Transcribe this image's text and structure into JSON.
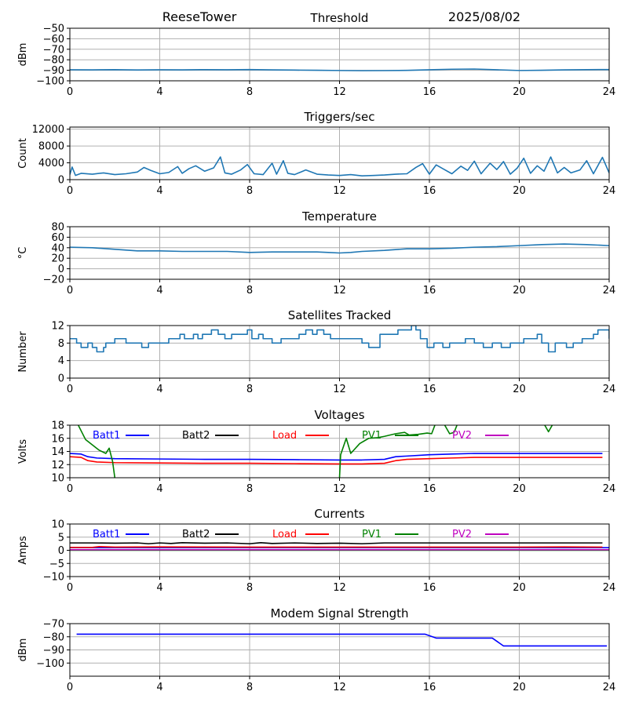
{
  "header": {
    "station": "ReeseTower",
    "panel_title": "Threshold",
    "date": "2025/08/02"
  },
  "colors": {
    "default_line": "#1f77b4",
    "batt1": "#0000ff",
    "batt2": "#000000",
    "load": "#ff0000",
    "pv1": "#008000",
    "pv2": "#bf00bf",
    "grid": "#b0b0b0"
  },
  "chart_data": [
    {
      "type": "line",
      "id": "threshold",
      "title": "Threshold",
      "xlabel": "",
      "ylabel": "dBm",
      "xlim": [
        0,
        24
      ],
      "ylim": [
        -100,
        -50
      ],
      "xticks": [
        0,
        4,
        8,
        12,
        16,
        20,
        24
      ],
      "yticks": [
        -100,
        -90,
        -80,
        -70,
        -60,
        -50
      ],
      "grid": true,
      "series": [
        {
          "color": "#1f77b4",
          "x": [
            0,
            1,
            2,
            3,
            4,
            5,
            6,
            7,
            8,
            9,
            10,
            11,
            12,
            13,
            14,
            15,
            16,
            17,
            18,
            19,
            20,
            21,
            22,
            23,
            24
          ],
          "y": [
            -89.5,
            -89.6,
            -89.4,
            -89.7,
            -89.5,
            -89.6,
            -89.4,
            -89.5,
            -89.3,
            -89.6,
            -89.8,
            -90.0,
            -90.2,
            -90.4,
            -90.3,
            -90.1,
            -89.5,
            -89.0,
            -88.8,
            -89.5,
            -90.2,
            -90.0,
            -89.6,
            -89.4,
            -89.3
          ]
        }
      ]
    },
    {
      "type": "line",
      "id": "triggers",
      "title": "Triggers/sec",
      "xlabel": "",
      "ylabel": "Count",
      "xlim": [
        0,
        24
      ],
      "ylim": [
        0,
        12500
      ],
      "xticks": [
        0,
        4,
        8,
        12,
        16,
        20,
        24
      ],
      "yticks": [
        0,
        4000,
        8000,
        12000
      ],
      "grid": true,
      "series": [
        {
          "color": "#1f77b4",
          "x": [
            0,
            0.1,
            0.25,
            0.5,
            1,
            1.5,
            2,
            2.5,
            3,
            3.3,
            3.6,
            4,
            4.4,
            4.8,
            5,
            5.3,
            5.6,
            6,
            6.4,
            6.7,
            6.9,
            7.2,
            7.6,
            7.9,
            8.2,
            8.6,
            9.0,
            9.2,
            9.5,
            9.7,
            10.0,
            10.5,
            11,
            11.5,
            12,
            12.5,
            13,
            13.5,
            14,
            14.5,
            15,
            15.4,
            15.7,
            16,
            16.3,
            16.6,
            17,
            17.4,
            17.7,
            18,
            18.3,
            18.7,
            19,
            19.3,
            19.6,
            19.9,
            20.2,
            20.5,
            20.8,
            21.1,
            21.4,
            21.7,
            22,
            22.3,
            22.7,
            23,
            23.3,
            23.7,
            24
          ],
          "y": [
            1200,
            3000,
            1000,
            1500,
            1300,
            1600,
            1200,
            1400,
            1800,
            2900,
            2200,
            1400,
            1700,
            3100,
            1500,
            2600,
            3300,
            2000,
            2800,
            5400,
            1600,
            1300,
            2300,
            3600,
            1400,
            1200,
            3900,
            1300,
            4500,
            1500,
            1200,
            2300,
            1300,
            1100,
            1000,
            1200,
            900,
            1000,
            1100,
            1300,
            1400,
            2900,
            3800,
            1300,
            3500,
            2600,
            1400,
            3200,
            2200,
            4400,
            1400,
            3900,
            2400,
            4300,
            1300,
            2700,
            5100,
            1500,
            3300,
            2000,
            5400,
            1600,
            2900,
            1600,
            2300,
            4500,
            1400,
            5300,
            1600
          ]
        }
      ]
    },
    {
      "type": "line",
      "id": "temperature",
      "title": "Temperature",
      "xlabel": "",
      "ylabel": "°C",
      "xlim": [
        0,
        24
      ],
      "ylim": [
        -20,
        80
      ],
      "xticks": [
        0,
        4,
        8,
        12,
        16,
        20,
        24
      ],
      "yticks": [
        -20,
        0,
        20,
        40,
        60,
        80
      ],
      "grid": true,
      "series": [
        {
          "color": "#1f77b4",
          "x": [
            0,
            1,
            2,
            3,
            4,
            5,
            6,
            7,
            8,
            9,
            10,
            11,
            11.5,
            12,
            12.5,
            13,
            14,
            15,
            16,
            17,
            18,
            19,
            20,
            21,
            22,
            23,
            24
          ],
          "y": [
            41,
            40,
            37,
            34,
            34,
            33,
            33,
            33,
            31,
            32,
            32,
            32,
            31,
            30,
            31,
            33,
            35,
            38,
            38,
            39,
            41,
            42,
            44,
            46,
            47,
            46,
            44
          ]
        }
      ]
    },
    {
      "type": "line",
      "id": "satellites",
      "title": "Satellites Tracked",
      "xlabel": "",
      "ylabel": "Number",
      "xlim": [
        0,
        24
      ],
      "ylim": [
        0,
        12
      ],
      "xticks": [
        0,
        4,
        8,
        12,
        16,
        20,
        24
      ],
      "yticks": [
        0,
        4,
        8,
        12
      ],
      "grid": true,
      "series": [
        {
          "color": "#1f77b4",
          "step": true,
          "x": [
            0,
            0.3,
            0.5,
            0.8,
            1.0,
            1.2,
            1.5,
            1.6,
            1.8,
            2.0,
            2.2,
            2.5,
            2.9,
            3.2,
            3.5,
            3.9,
            4.4,
            4.7,
            4.9,
            5.1,
            5.5,
            5.7,
            5.9,
            6.3,
            6.6,
            6.9,
            7.2,
            7.6,
            7.9,
            8.1,
            8.4,
            8.6,
            8.8,
            9.0,
            9.4,
            9.8,
            10.2,
            10.5,
            10.8,
            11.0,
            11.3,
            11.6,
            12.0,
            12.5,
            13.0,
            13.3,
            13.8,
            14.2,
            14.6,
            15.0,
            15.2,
            15.4,
            15.6,
            15.9,
            16.2,
            16.6,
            16.9,
            17.3,
            17.6,
            18.0,
            18.4,
            18.8,
            19.2,
            19.6,
            19.9,
            20.2,
            20.6,
            20.8,
            21.0,
            21.3,
            21.6,
            21.9,
            22.1,
            22.4,
            22.8,
            23.1,
            23.3,
            23.5,
            24
          ],
          "y": [
            9,
            8,
            7,
            8,
            7,
            6,
            7,
            8,
            8,
            9,
            9,
            8,
            8,
            7,
            8,
            8,
            9,
            9,
            10,
            9,
            10,
            9,
            10,
            11,
            10,
            9,
            10,
            10,
            11,
            9,
            10,
            9,
            9,
            8,
            9,
            9,
            10,
            11,
            10,
            11,
            10,
            9,
            9,
            9,
            8,
            7,
            10,
            10,
            11,
            11,
            12,
            11,
            9,
            7,
            8,
            7,
            8,
            8,
            9,
            8,
            7,
            8,
            7,
            8,
            8,
            9,
            9,
            10,
            8,
            6,
            8,
            8,
            7,
            8,
            9,
            9,
            10,
            11,
            9
          ]
        }
      ]
    },
    {
      "type": "line",
      "id": "voltages",
      "title": "Voltages",
      "xlabel": "",
      "ylabel": "Volts",
      "xlim": [
        0,
        24
      ],
      "ylim": [
        10,
        18
      ],
      "xticks": [
        0,
        4,
        8,
        12,
        16,
        20,
        24
      ],
      "yticks": [
        10,
        12,
        14,
        16,
        18
      ],
      "grid": true,
      "legend": "top, in-plot row",
      "series": [
        {
          "name": "Batt1",
          "color": "#0000ff",
          "x": [
            0,
            0.5,
            0.8,
            1.2,
            2,
            4,
            6,
            8,
            10,
            12,
            13,
            14,
            14.5,
            15,
            16,
            17,
            18,
            20,
            22,
            23.7
          ],
          "y": [
            13.7,
            13.6,
            13.2,
            13.0,
            12.9,
            12.85,
            12.8,
            12.8,
            12.75,
            12.7,
            12.7,
            12.8,
            13.2,
            13.3,
            13.5,
            13.6,
            13.7,
            13.7,
            13.7,
            13.7
          ]
        },
        {
          "name": "Batt2",
          "color": "#000000",
          "x": [],
          "y": []
        },
        {
          "name": "Load",
          "color": "#ff0000",
          "x": [
            0,
            0.5,
            0.8,
            1.2,
            2,
            4,
            6,
            8,
            10,
            12,
            13,
            14,
            14.5,
            15,
            16,
            17,
            18,
            20,
            22,
            23.7
          ],
          "y": [
            13.2,
            13.1,
            12.6,
            12.4,
            12.3,
            12.25,
            12.2,
            12.2,
            12.15,
            12.1,
            12.1,
            12.2,
            12.6,
            12.8,
            12.9,
            13.0,
            13.1,
            13.1,
            13.1,
            13.1
          ]
        },
        {
          "name": "PV1",
          "color": "#008000",
          "segments": [
            {
              "x": [
                0.3,
                0.7,
                1.0,
                1.3,
                1.6,
                1.75,
                1.9,
                2.0
              ],
              "y": [
                18.5,
                15.8,
                15.0,
                14.2,
                13.7,
                14.5,
                12.5,
                10.0
              ]
            },
            {
              "x": [
                12.0,
                12.05,
                12.3,
                12.5,
                12.9,
                13.3,
                13.7,
                14.0,
                14.5,
                14.9,
                15.1,
                15.5,
                15.9,
                16.1,
                16.3,
                16.6,
                16.9,
                17.1
              ],
              "y": [
                10.0,
                13.5,
                16.0,
                13.7,
                15.2,
                16.0,
                16.1,
                16.3,
                16.7,
                16.9,
                16.5,
                16.6,
                16.8,
                16.7,
                18.5,
                18.5,
                16.7,
                16.9
              ]
            },
            {
              "x": [
                17.1,
                17.25
              ],
              "y": [
                16.9,
                18.2
              ]
            },
            {
              "x": [
                21.1,
                21.3,
                21.5
              ],
              "y": [
                18.2,
                17.0,
                18.2
              ]
            }
          ]
        },
        {
          "name": "PV2",
          "color": "#bf00bf",
          "x": [],
          "y": []
        }
      ]
    },
    {
      "type": "line",
      "id": "currents",
      "title": "Currents",
      "xlabel": "",
      "ylabel": "Amps",
      "xlim": [
        0,
        24
      ],
      "ylim": [
        -10,
        10
      ],
      "xticks": [
        0,
        4,
        8,
        12,
        16,
        20,
        24
      ],
      "yticks": [
        -10,
        -5,
        0,
        5,
        10
      ],
      "grid": true,
      "legend": "top, in-plot row",
      "series": [
        {
          "name": "Batt1",
          "color": "#0000ff",
          "x": [
            0,
            24
          ],
          "y": [
            1.0,
            1.0
          ]
        },
        {
          "name": "Batt2",
          "color": "#000000",
          "x": [
            0,
            1,
            2,
            3,
            3.5,
            4,
            4.5,
            5,
            6,
            7,
            8,
            8.5,
            9,
            10,
            11,
            12,
            13,
            14,
            16,
            18,
            20,
            22,
            23.7
          ],
          "y": [
            2.8,
            2.8,
            2.7,
            2.8,
            2.5,
            2.8,
            2.6,
            2.9,
            2.7,
            2.8,
            2.5,
            2.9,
            2.6,
            2.8,
            2.6,
            2.7,
            2.5,
            2.8,
            2.8,
            2.8,
            2.8,
            2.8,
            2.8
          ]
        },
        {
          "name": "Load",
          "color": "#ff0000",
          "x": [
            0,
            1,
            1.3,
            2,
            4,
            8,
            12,
            16,
            20,
            22,
            23.7
          ],
          "y": [
            1.1,
            1.1,
            1.4,
            1.2,
            1.3,
            1.2,
            1.2,
            1.2,
            1.2,
            1.3,
            1.2
          ]
        },
        {
          "name": "PV1",
          "color": "#008000",
          "x": [
            0,
            24
          ],
          "y": [
            0.0,
            0.0
          ]
        },
        {
          "name": "PV2",
          "color": "#bf00bf",
          "x": [
            0,
            24
          ],
          "y": [
            0.2,
            0.2
          ]
        }
      ]
    },
    {
      "type": "line",
      "id": "modem",
      "title": "Modem Signal Strength",
      "xlabel": "",
      "ylabel": "dBm",
      "xlim": [
        0,
        24
      ],
      "ylim": [
        -110,
        -70
      ],
      "xticks": [
        0,
        4,
        8,
        12,
        16,
        20,
        24
      ],
      "yticks": [
        -100,
        -90,
        -80,
        -70
      ],
      "grid": true,
      "series": [
        {
          "color": "#0000ff",
          "x": [
            0.3,
            15.8,
            16.3,
            18.8,
            19.3,
            23.9
          ],
          "y": [
            -78,
            -78,
            -81,
            -81,
            -87,
            -87
          ]
        }
      ]
    }
  ]
}
